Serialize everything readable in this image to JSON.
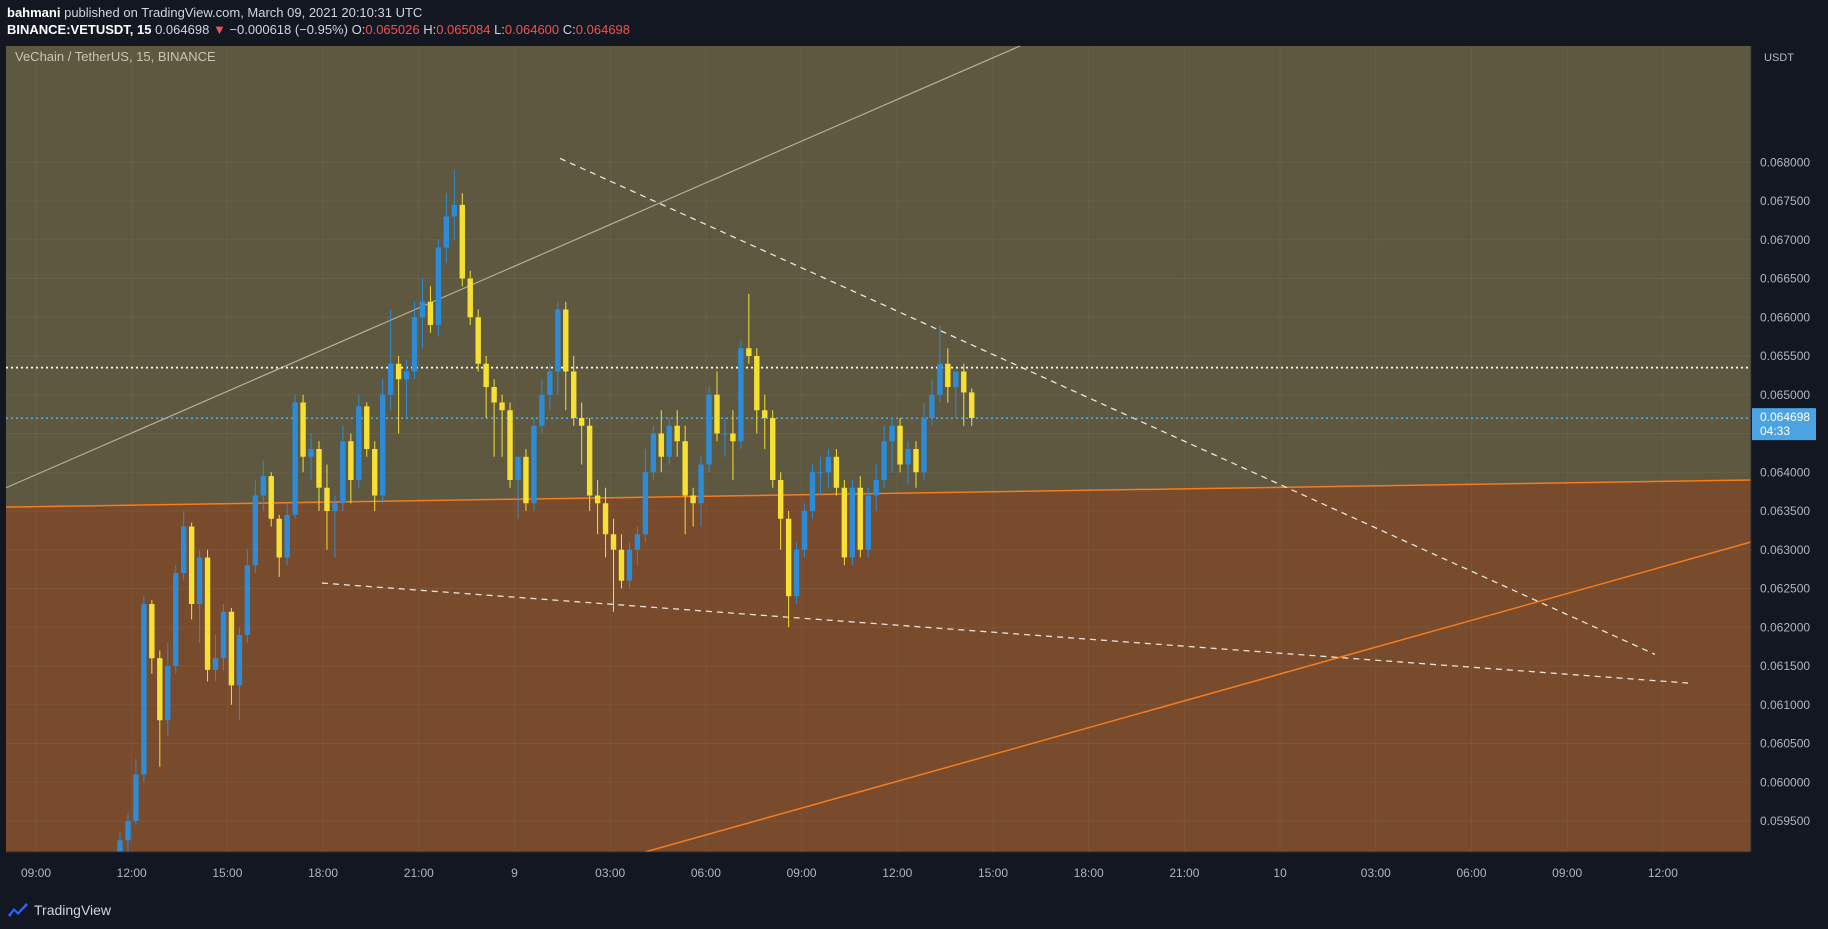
{
  "header": {
    "author": "bahmani",
    "published_text": "published on TradingView.com, March 09, 2021 20:10:31 UTC",
    "symbol": "BINANCE:VETUSDT, 15",
    "last": "0.064698",
    "change_arrow": "▼",
    "change": "−0.000618 (−0.95%)",
    "open_label": "O:",
    "open": "0.065026",
    "high_label": "H:",
    "high": "0.065084",
    "low_label": "L:",
    "low": "0.064600",
    "close_label": "C:",
    "close": "0.064698"
  },
  "footer": {
    "brand": "TradingView",
    "logo_icon": "tradingview-logo-icon"
  },
  "chart_data": {
    "type": "candlestick",
    "title": "VeChain / TetherUS, 15, BINANCE",
    "currency": "USDT",
    "ylim": [
      0.0591,
      0.0695
    ],
    "y_ticks": [
      "0.068000",
      "0.067500",
      "0.067000",
      "0.066500",
      "0.066000",
      "0.065500",
      "0.065000",
      "0.064500",
      "0.064000",
      "0.063500",
      "0.063000",
      "0.062500",
      "0.062000",
      "0.061500",
      "0.061000",
      "0.060500",
      "0.060000",
      "0.059500"
    ],
    "x_ticks": [
      "09:00",
      "12:00",
      "15:00",
      "18:00",
      "21:00",
      "9",
      "03:00",
      "06:00",
      "09:00",
      "12:00",
      "15:00",
      "18:00",
      "21:00",
      "10",
      "03:00",
      "06:00",
      "09:00",
      "12:00"
    ],
    "last_price_label": "0.064698",
    "countdown": "04:33",
    "colors": {
      "up": "#2e8bd6",
      "down": "#f5e033",
      "band": "#7a4a2a",
      "trend": "#f57c1f"
    },
    "candles": [
      {
        "o": 0.05905,
        "h": 0.05935,
        "l": 0.059,
        "c": 0.05925
      },
      {
        "o": 0.05925,
        "h": 0.0596,
        "l": 0.0591,
        "c": 0.0595
      },
      {
        "o": 0.0595,
        "h": 0.0603,
        "l": 0.05945,
        "c": 0.0601
      },
      {
        "o": 0.0601,
        "h": 0.0624,
        "l": 0.06,
        "c": 0.0623
      },
      {
        "o": 0.0623,
        "h": 0.06235,
        "l": 0.0614,
        "c": 0.0616
      },
      {
        "o": 0.0616,
        "h": 0.0617,
        "l": 0.0602,
        "c": 0.0608
      },
      {
        "o": 0.0608,
        "h": 0.0618,
        "l": 0.0606,
        "c": 0.0615
      },
      {
        "o": 0.0615,
        "h": 0.0628,
        "l": 0.0614,
        "c": 0.0627
      },
      {
        "o": 0.0627,
        "h": 0.0635,
        "l": 0.0626,
        "c": 0.0633
      },
      {
        "o": 0.0633,
        "h": 0.06335,
        "l": 0.0621,
        "c": 0.0623
      },
      {
        "o": 0.0623,
        "h": 0.063,
        "l": 0.0618,
        "c": 0.0629
      },
      {
        "o": 0.0629,
        "h": 0.063,
        "l": 0.0613,
        "c": 0.06145
      },
      {
        "o": 0.06145,
        "h": 0.0619,
        "l": 0.0613,
        "c": 0.0616
      },
      {
        "o": 0.0616,
        "h": 0.0623,
        "l": 0.06145,
        "c": 0.0622
      },
      {
        "o": 0.0622,
        "h": 0.06225,
        "l": 0.061,
        "c": 0.06125
      },
      {
        "o": 0.06125,
        "h": 0.062,
        "l": 0.0608,
        "c": 0.0619
      },
      {
        "o": 0.0619,
        "h": 0.063,
        "l": 0.0618,
        "c": 0.0628
      },
      {
        "o": 0.0628,
        "h": 0.0639,
        "l": 0.0627,
        "c": 0.0637
      },
      {
        "o": 0.0637,
        "h": 0.06415,
        "l": 0.0635,
        "c": 0.06395
      },
      {
        "o": 0.06395,
        "h": 0.064,
        "l": 0.0633,
        "c": 0.0634
      },
      {
        "o": 0.0634,
        "h": 0.06345,
        "l": 0.06265,
        "c": 0.0629
      },
      {
        "o": 0.0629,
        "h": 0.0636,
        "l": 0.0628,
        "c": 0.06345
      },
      {
        "o": 0.06345,
        "h": 0.065,
        "l": 0.0634,
        "c": 0.0649
      },
      {
        "o": 0.0649,
        "h": 0.065,
        "l": 0.064,
        "c": 0.0642
      },
      {
        "o": 0.0642,
        "h": 0.0645,
        "l": 0.0639,
        "c": 0.0643
      },
      {
        "o": 0.0643,
        "h": 0.0644,
        "l": 0.0635,
        "c": 0.0638
      },
      {
        "o": 0.0638,
        "h": 0.0641,
        "l": 0.063,
        "c": 0.0635
      },
      {
        "o": 0.0635,
        "h": 0.0637,
        "l": 0.0629,
        "c": 0.0636
      },
      {
        "o": 0.0636,
        "h": 0.0646,
        "l": 0.0635,
        "c": 0.0644
      },
      {
        "o": 0.0644,
        "h": 0.0645,
        "l": 0.0636,
        "c": 0.0639
      },
      {
        "o": 0.0639,
        "h": 0.065,
        "l": 0.0638,
        "c": 0.06485
      },
      {
        "o": 0.06485,
        "h": 0.0649,
        "l": 0.0642,
        "c": 0.0643
      },
      {
        "o": 0.0643,
        "h": 0.0644,
        "l": 0.0635,
        "c": 0.0637
      },
      {
        "o": 0.0637,
        "h": 0.0652,
        "l": 0.0636,
        "c": 0.065
      },
      {
        "o": 0.065,
        "h": 0.0661,
        "l": 0.0648,
        "c": 0.0654
      },
      {
        "o": 0.0654,
        "h": 0.0655,
        "l": 0.0645,
        "c": 0.0652
      },
      {
        "o": 0.0652,
        "h": 0.06545,
        "l": 0.0647,
        "c": 0.0653
      },
      {
        "o": 0.0653,
        "h": 0.0662,
        "l": 0.0652,
        "c": 0.066
      },
      {
        "o": 0.066,
        "h": 0.0665,
        "l": 0.0656,
        "c": 0.0662
      },
      {
        "o": 0.0662,
        "h": 0.0664,
        "l": 0.0658,
        "c": 0.0659
      },
      {
        "o": 0.0659,
        "h": 0.067,
        "l": 0.06575,
        "c": 0.0669
      },
      {
        "o": 0.0669,
        "h": 0.0676,
        "l": 0.0667,
        "c": 0.0673
      },
      {
        "o": 0.0673,
        "h": 0.0679,
        "l": 0.067,
        "c": 0.06745
      },
      {
        "o": 0.06745,
        "h": 0.0676,
        "l": 0.0664,
        "c": 0.0665
      },
      {
        "o": 0.0665,
        "h": 0.0666,
        "l": 0.0659,
        "c": 0.066
      },
      {
        "o": 0.066,
        "h": 0.0661,
        "l": 0.0653,
        "c": 0.0654
      },
      {
        "o": 0.0654,
        "h": 0.0655,
        "l": 0.0647,
        "c": 0.0651
      },
      {
        "o": 0.0651,
        "h": 0.0652,
        "l": 0.0642,
        "c": 0.0649
      },
      {
        "o": 0.0649,
        "h": 0.065,
        "l": 0.0642,
        "c": 0.0648
      },
      {
        "o": 0.0648,
        "h": 0.0649,
        "l": 0.0638,
        "c": 0.0639
      },
      {
        "o": 0.0639,
        "h": 0.0642,
        "l": 0.0634,
        "c": 0.0642
      },
      {
        "o": 0.0642,
        "h": 0.0643,
        "l": 0.0635,
        "c": 0.0636
      },
      {
        "o": 0.0636,
        "h": 0.0647,
        "l": 0.0635,
        "c": 0.0646
      },
      {
        "o": 0.0646,
        "h": 0.0652,
        "l": 0.0645,
        "c": 0.065
      },
      {
        "o": 0.065,
        "h": 0.0654,
        "l": 0.0648,
        "c": 0.0653
      },
      {
        "o": 0.0653,
        "h": 0.0662,
        "l": 0.065,
        "c": 0.0661
      },
      {
        "o": 0.0661,
        "h": 0.0662,
        "l": 0.0648,
        "c": 0.0653
      },
      {
        "o": 0.0653,
        "h": 0.0655,
        "l": 0.0646,
        "c": 0.0647
      },
      {
        "o": 0.0647,
        "h": 0.0649,
        "l": 0.0641,
        "c": 0.0646
      },
      {
        "o": 0.0646,
        "h": 0.0647,
        "l": 0.0635,
        "c": 0.0637
      },
      {
        "o": 0.0637,
        "h": 0.0639,
        "l": 0.0632,
        "c": 0.0636
      },
      {
        "o": 0.0636,
        "h": 0.0638,
        "l": 0.0629,
        "c": 0.0632
      },
      {
        "o": 0.0632,
        "h": 0.0634,
        "l": 0.0622,
        "c": 0.063
      },
      {
        "o": 0.063,
        "h": 0.0632,
        "l": 0.0625,
        "c": 0.0626
      },
      {
        "o": 0.0626,
        "h": 0.0631,
        "l": 0.0625,
        "c": 0.063
      },
      {
        "o": 0.063,
        "h": 0.0633,
        "l": 0.0628,
        "c": 0.0632
      },
      {
        "o": 0.0632,
        "h": 0.0643,
        "l": 0.0631,
        "c": 0.064
      },
      {
        "o": 0.064,
        "h": 0.0646,
        "l": 0.0639,
        "c": 0.0645
      },
      {
        "o": 0.0645,
        "h": 0.0648,
        "l": 0.064,
        "c": 0.0642
      },
      {
        "o": 0.0642,
        "h": 0.0647,
        "l": 0.0641,
        "c": 0.0646
      },
      {
        "o": 0.0646,
        "h": 0.0648,
        "l": 0.0642,
        "c": 0.0644
      },
      {
        "o": 0.0644,
        "h": 0.0646,
        "l": 0.0632,
        "c": 0.0637
      },
      {
        "o": 0.0637,
        "h": 0.0638,
        "l": 0.0633,
        "c": 0.0636
      },
      {
        "o": 0.0636,
        "h": 0.0642,
        "l": 0.0633,
        "c": 0.0641
      },
      {
        "o": 0.0641,
        "h": 0.0651,
        "l": 0.064,
        "c": 0.065
      },
      {
        "o": 0.065,
        "h": 0.0653,
        "l": 0.0644,
        "c": 0.0645
      },
      {
        "o": 0.0645,
        "h": 0.0647,
        "l": 0.0642,
        "c": 0.0645
      },
      {
        "o": 0.0645,
        "h": 0.0648,
        "l": 0.0639,
        "c": 0.0644
      },
      {
        "o": 0.0644,
        "h": 0.0657,
        "l": 0.0643,
        "c": 0.0656
      },
      {
        "o": 0.0656,
        "h": 0.0663,
        "l": 0.0654,
        "c": 0.0655
      },
      {
        "o": 0.0655,
        "h": 0.0656,
        "l": 0.0645,
        "c": 0.0648
      },
      {
        "o": 0.0648,
        "h": 0.065,
        "l": 0.0643,
        "c": 0.0647
      },
      {
        "o": 0.0647,
        "h": 0.0648,
        "l": 0.0638,
        "c": 0.0639
      },
      {
        "o": 0.0639,
        "h": 0.064,
        "l": 0.063,
        "c": 0.0634
      },
      {
        "o": 0.0634,
        "h": 0.0635,
        "l": 0.062,
        "c": 0.0624
      },
      {
        "o": 0.0624,
        "h": 0.0631,
        "l": 0.0623,
        "c": 0.063
      },
      {
        "o": 0.063,
        "h": 0.0636,
        "l": 0.0629,
        "c": 0.0635
      },
      {
        "o": 0.0635,
        "h": 0.0641,
        "l": 0.0634,
        "c": 0.064
      },
      {
        "o": 0.064,
        "h": 0.0642,
        "l": 0.0637,
        "c": 0.064
      },
      {
        "o": 0.064,
        "h": 0.0643,
        "l": 0.0638,
        "c": 0.0642
      },
      {
        "o": 0.0642,
        "h": 0.0643,
        "l": 0.0637,
        "c": 0.0638
      },
      {
        "o": 0.0638,
        "h": 0.0639,
        "l": 0.0628,
        "c": 0.0629
      },
      {
        "o": 0.0629,
        "h": 0.0639,
        "l": 0.0628,
        "c": 0.0638
      },
      {
        "o": 0.0638,
        "h": 0.06395,
        "l": 0.0629,
        "c": 0.063
      },
      {
        "o": 0.063,
        "h": 0.0638,
        "l": 0.0629,
        "c": 0.0637
      },
      {
        "o": 0.0637,
        "h": 0.0641,
        "l": 0.0635,
        "c": 0.0639
      },
      {
        "o": 0.0639,
        "h": 0.0646,
        "l": 0.0638,
        "c": 0.0644
      },
      {
        "o": 0.0644,
        "h": 0.0647,
        "l": 0.064,
        "c": 0.0646
      },
      {
        "o": 0.0646,
        "h": 0.0647,
        "l": 0.064,
        "c": 0.0641
      },
      {
        "o": 0.0641,
        "h": 0.0644,
        "l": 0.06385,
        "c": 0.0643
      },
      {
        "o": 0.0643,
        "h": 0.0644,
        "l": 0.0638,
        "c": 0.064
      },
      {
        "o": 0.064,
        "h": 0.0649,
        "l": 0.0639,
        "c": 0.0647
      },
      {
        "o": 0.0647,
        "h": 0.0652,
        "l": 0.0646,
        "c": 0.065
      },
      {
        "o": 0.065,
        "h": 0.0659,
        "l": 0.0649,
        "c": 0.0654
      },
      {
        "o": 0.0654,
        "h": 0.0656,
        "l": 0.0649,
        "c": 0.0651
      },
      {
        "o": 0.0651,
        "h": 0.0653,
        "l": 0.0647,
        "c": 0.0653
      },
      {
        "o": 0.0653,
        "h": 0.0654,
        "l": 0.0646,
        "c": 0.06503
      },
      {
        "o": 0.06503,
        "h": 0.06508,
        "l": 0.0646,
        "c": 0.0647
      }
    ]
  }
}
